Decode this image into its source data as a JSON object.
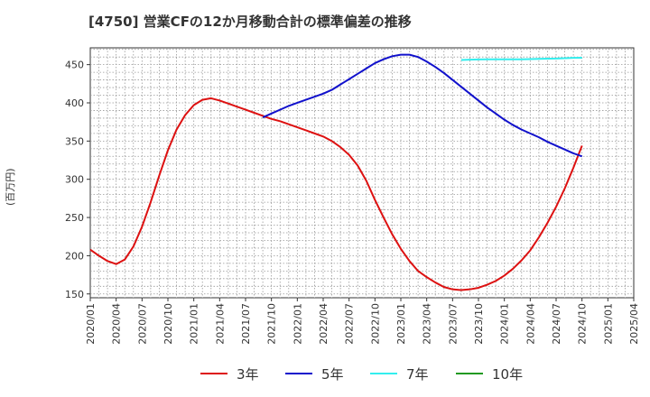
{
  "chart_data": {
    "type": "line",
    "title": "[4750]  営業CFの12か月移動合計の標準偏差の推移",
    "ylabel": "(百万円)",
    "xlabel": "",
    "ylim": [
      145,
      472
    ],
    "x_range": [
      "2020-01",
      "2025-04"
    ],
    "y_ticks": [
      150,
      200,
      250,
      300,
      350,
      400,
      450
    ],
    "x_ticks": [
      "2020/01",
      "2020/04",
      "2020/07",
      "2020/10",
      "2021/01",
      "2021/04",
      "2021/07",
      "2021/10",
      "2022/01",
      "2022/04",
      "2022/07",
      "2022/10",
      "2023/01",
      "2023/04",
      "2023/07",
      "2023/10",
      "2024/01",
      "2024/04",
      "2024/07",
      "2024/10",
      "2025/01",
      "2025/04"
    ],
    "grid": true,
    "legend_position": "bottom",
    "series": [
      {
        "name": "3年",
        "color": "#dd1111",
        "points": [
          [
            "2020-01",
            208
          ],
          [
            "2020-02",
            200
          ],
          [
            "2020-03",
            193
          ],
          [
            "2020-04",
            189
          ],
          [
            "2020-05",
            195
          ],
          [
            "2020-06",
            212
          ],
          [
            "2020-07",
            238
          ],
          [
            "2020-08",
            270
          ],
          [
            "2020-09",
            305
          ],
          [
            "2020-10",
            338
          ],
          [
            "2020-11",
            365
          ],
          [
            "2020-12",
            384
          ],
          [
            "2021-01",
            397
          ],
          [
            "2021-02",
            404
          ],
          [
            "2021-03",
            406
          ],
          [
            "2021-04",
            403
          ],
          [
            "2021-05",
            399
          ],
          [
            "2021-06",
            395
          ],
          [
            "2021-07",
            391
          ],
          [
            "2021-08",
            387
          ],
          [
            "2021-09",
            383
          ],
          [
            "2021-10",
            379
          ],
          [
            "2021-11",
            376
          ],
          [
            "2021-12",
            372
          ],
          [
            "2022-01",
            368
          ],
          [
            "2022-02",
            364
          ],
          [
            "2022-03",
            360
          ],
          [
            "2022-04",
            356
          ],
          [
            "2022-05",
            350
          ],
          [
            "2022-06",
            342
          ],
          [
            "2022-07",
            332
          ],
          [
            "2022-08",
            318
          ],
          [
            "2022-09",
            298
          ],
          [
            "2022-10",
            273
          ],
          [
            "2022-11",
            250
          ],
          [
            "2022-12",
            228
          ],
          [
            "2023-01",
            209
          ],
          [
            "2023-02",
            193
          ],
          [
            "2023-03",
            180
          ],
          [
            "2023-04",
            172
          ],
          [
            "2023-05",
            165
          ],
          [
            "2023-06",
            159
          ],
          [
            "2023-07",
            156
          ],
          [
            "2023-08",
            155
          ],
          [
            "2023-09",
            156
          ],
          [
            "2023-10",
            158
          ],
          [
            "2023-11",
            162
          ],
          [
            "2023-12",
            167
          ],
          [
            "2024-01",
            174
          ],
          [
            "2024-02",
            183
          ],
          [
            "2024-03",
            194
          ],
          [
            "2024-04",
            207
          ],
          [
            "2024-05",
            224
          ],
          [
            "2024-06",
            243
          ],
          [
            "2024-07",
            264
          ],
          [
            "2024-08",
            288
          ],
          [
            "2024-09",
            315
          ],
          [
            "2024-10",
            344
          ]
        ]
      },
      {
        "name": "5年",
        "color": "#1111cc",
        "points": [
          [
            "2021-09",
            381
          ],
          [
            "2021-10",
            386
          ],
          [
            "2021-11",
            391
          ],
          [
            "2021-12",
            396
          ],
          [
            "2022-01",
            400
          ],
          [
            "2022-02",
            404
          ],
          [
            "2022-03",
            408
          ],
          [
            "2022-04",
            412
          ],
          [
            "2022-05",
            417
          ],
          [
            "2022-06",
            424
          ],
          [
            "2022-07",
            431
          ],
          [
            "2022-08",
            438
          ],
          [
            "2022-09",
            445
          ],
          [
            "2022-10",
            452
          ],
          [
            "2022-11",
            457
          ],
          [
            "2022-12",
            461
          ],
          [
            "2023-01",
            463
          ],
          [
            "2023-02",
            463
          ],
          [
            "2023-03",
            460
          ],
          [
            "2023-04",
            454
          ],
          [
            "2023-05",
            447
          ],
          [
            "2023-06",
            439
          ],
          [
            "2023-07",
            430
          ],
          [
            "2023-08",
            421
          ],
          [
            "2023-09",
            412
          ],
          [
            "2023-10",
            403
          ],
          [
            "2023-11",
            394
          ],
          [
            "2023-12",
            386
          ],
          [
            "2024-01",
            378
          ],
          [
            "2024-02",
            371
          ],
          [
            "2024-03",
            365
          ],
          [
            "2024-04",
            360
          ],
          [
            "2024-05",
            355
          ],
          [
            "2024-06",
            349
          ],
          [
            "2024-07",
            344
          ],
          [
            "2024-08",
            339
          ],
          [
            "2024-09",
            334
          ],
          [
            "2024-10",
            330
          ]
        ]
      },
      {
        "name": "7年",
        "color": "#33eeee",
        "points": [
          [
            "2023-08",
            456
          ],
          [
            "2023-09",
            456.5
          ],
          [
            "2023-10",
            456.8
          ],
          [
            "2023-11",
            457
          ],
          [
            "2023-12",
            457
          ],
          [
            "2024-01",
            457
          ],
          [
            "2024-02",
            457
          ],
          [
            "2024-03",
            457
          ],
          [
            "2024-04",
            457.2
          ],
          [
            "2024-05",
            457.5
          ],
          [
            "2024-06",
            457.8
          ],
          [
            "2024-07",
            458
          ],
          [
            "2024-08",
            458.5
          ],
          [
            "2024-09",
            458.8
          ],
          [
            "2024-10",
            459
          ]
        ]
      },
      {
        "name": "10年",
        "color": "#229922",
        "points": []
      }
    ]
  }
}
